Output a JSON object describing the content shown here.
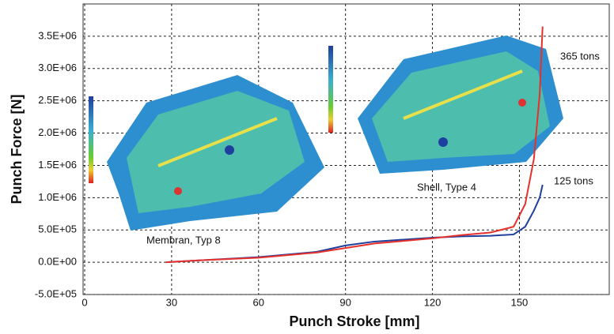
{
  "chart_data": {
    "type": "line",
    "x_label": "Punch Stroke [mm]",
    "y_label": "Punch Force [N]",
    "x": [
      28,
      40,
      60,
      80,
      90,
      100,
      110,
      120,
      130,
      140,
      148,
      152,
      155,
      157,
      158
    ],
    "series": [
      {
        "name": "Membran, Typ 8",
        "color": "#1f3f9e",
        "values": [
          0,
          30000,
          80000,
          160000,
          260000,
          320000,
          350000,
          380000,
          400000,
          410000,
          430000,
          550000,
          800000,
          1000000,
          1200000
        ]
      },
      {
        "name": "Shell, Type 4",
        "color": "#e8302a",
        "values": [
          0,
          30000,
          70000,
          150000,
          220000,
          290000,
          330000,
          370000,
          420000,
          460000,
          550000,
          900000,
          1600000,
          2600000,
          3650000
        ]
      }
    ],
    "annotations": [
      {
        "text": "365 tons"
      },
      {
        "text": "125 tons"
      }
    ],
    "xlim": [
      0,
      181
    ],
    "ylim": [
      -500000,
      4000000
    ],
    "xticks": [
      0,
      30,
      60,
      90,
      120,
      150
    ],
    "yticks": [
      {
        "value": -500000,
        "label": "-5.0E+05"
      },
      {
        "value": 0,
        "label": "0.0E+00"
      },
      {
        "value": 500000,
        "label": "5.0E+05"
      },
      {
        "value": 1000000,
        "label": "1.0E+06"
      },
      {
        "value": 1500000,
        "label": "1.5E+06"
      },
      {
        "value": 2000000,
        "label": "2.0E+06"
      },
      {
        "value": 2500000,
        "label": "2.5E+06"
      },
      {
        "value": 3000000,
        "label": "3.0E+06"
      },
      {
        "value": 3500000,
        "label": "3.5E+06"
      }
    ],
    "grid": true
  }
}
